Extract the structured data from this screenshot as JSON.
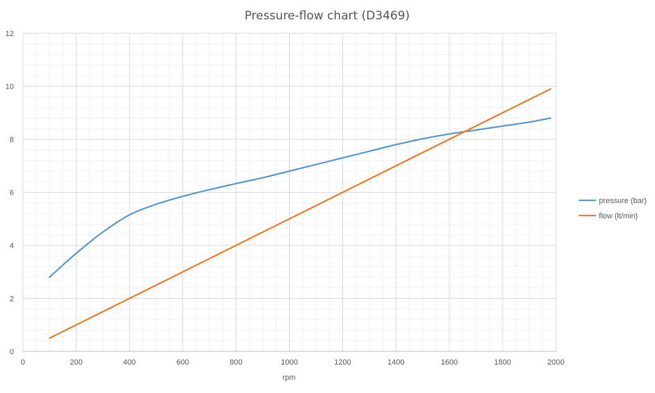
{
  "chart_data": {
    "type": "line",
    "title": "Pressure-flow chart (D3469)",
    "xlabel": "rpm",
    "ylabel": "",
    "xlim": [
      0,
      2000
    ],
    "ylim": [
      0,
      12
    ],
    "x_ticks": [
      0,
      200,
      400,
      600,
      800,
      1000,
      1200,
      1400,
      1600,
      1800,
      2000
    ],
    "y_ticks": [
      0,
      2,
      4,
      6,
      8,
      10,
      12
    ],
    "x_minor_step": 50,
    "y_minor_step": 0.4,
    "grid": true,
    "legend_position": "right",
    "series": [
      {
        "name": "pressure (bar)",
        "color": "#5b9bd5",
        "x": [
          100,
          200,
          300,
          400,
          500,
          600,
          700,
          800,
          900,
          1000,
          1100,
          1200,
          1300,
          1400,
          1500,
          1600,
          1700,
          1800,
          1900,
          1980
        ],
        "y": [
          2.8,
          3.7,
          4.5,
          5.15,
          5.55,
          5.85,
          6.1,
          6.33,
          6.55,
          6.8,
          7.05,
          7.3,
          7.55,
          7.8,
          8.02,
          8.2,
          8.35,
          8.5,
          8.65,
          8.8
        ]
      },
      {
        "name": "flow (lt/min)",
        "color": "#ed7d31",
        "x": [
          100,
          1980
        ],
        "y": [
          0.5,
          9.9
        ]
      }
    ]
  }
}
